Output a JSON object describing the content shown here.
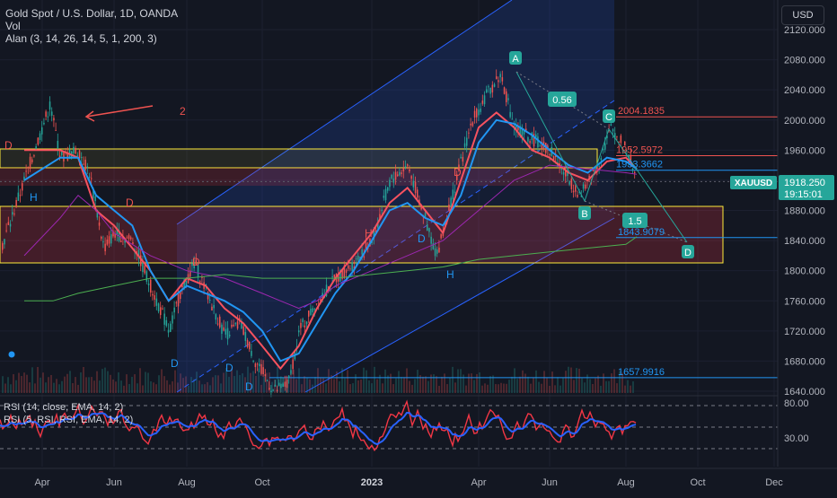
{
  "header": {
    "title": "Gold Spot / U.S. Dollar, 1D, OANDA",
    "vol_label": "Vol",
    "indicator_label": "Alan (3, 14, 26, 14, 5, 1, 200, 3)"
  },
  "currency_button": "USD",
  "price_axis": {
    "ticks": [
      "2120.000",
      "2080.000",
      "2040.000",
      "2000.000",
      "1960.000",
      "1920.000",
      "1880.000",
      "1840.000",
      "1800.000",
      "1760.000",
      "1720.000",
      "1680.000",
      "1640.000"
    ]
  },
  "rsi_axis": {
    "ticks": [
      "80.00",
      "30.00"
    ]
  },
  "time_axis": {
    "ticks": [
      "Apr",
      "Jun",
      "Aug",
      "Oct",
      "2023",
      "Apr",
      "Jun",
      "Aug",
      "Oct",
      "Dec"
    ]
  },
  "symbol_badge": {
    "symbol": "XAUUSD",
    "price": "1918.250",
    "countdown": "19:15:01"
  },
  "rsi_labels": {
    "line1": "RSI (14, close, EMA, 14, 2)",
    "line2": "RSI (5, RSI, RSI, EMA, 14, 2)"
  },
  "chart_labels": {
    "level_2004": "2004.1835",
    "level_1952": "1952.5972",
    "level_1933": "1933.3662",
    "level_1843": "1843.9079",
    "level_1657": "1657.9916",
    "ratio_056": "0.56",
    "ratio_15": "1.5",
    "pt_A": "A",
    "pt_B": "B",
    "pt_C": "C",
    "pt_D": "D",
    "annotation_2": "2"
  },
  "colors": {
    "background": "#131722",
    "up": "#26a69a",
    "down": "#ef5350",
    "channel": "#2962ff",
    "blue_line": "#2196f3",
    "red_line": "#f7525f",
    "purple_line": "#9c27b0",
    "green_line": "#4caf50",
    "yellow_box": "#ffeb3b",
    "rsi_red": "#f23645",
    "rsi_blue": "#2962ff"
  },
  "chart_data": [
    {
      "type": "candlestick",
      "title": "Gold Spot / U.S. Dollar, 1D, OANDA",
      "ylim": [
        1630,
        2140
      ],
      "yticks": [
        2120,
        2080,
        2040,
        2000,
        1960,
        1920,
        1880,
        1840,
        1800,
        1760,
        1720,
        1680,
        1640
      ],
      "last_price": 1918.25,
      "horizontal_levels": [
        2004.1835,
        1952.5972,
        1933.3662,
        1843.9079,
        1657.9916
      ],
      "pattern_points": {
        "A": 2062,
        "B": 1893,
        "C": 2004,
        "D": 1843
      },
      "ratios": [
        "0.56",
        "1.5"
      ]
    },
    {
      "type": "line",
      "title": "RSI (14, close, EMA, 14, 2)",
      "series": [
        {
          "name": "RSI (14, close, EMA, 14, 2)"
        },
        {
          "name": "RSI (5, RSI, RSI, EMA, 14, 2)"
        }
      ],
      "yticks": [
        80,
        30
      ]
    }
  ]
}
